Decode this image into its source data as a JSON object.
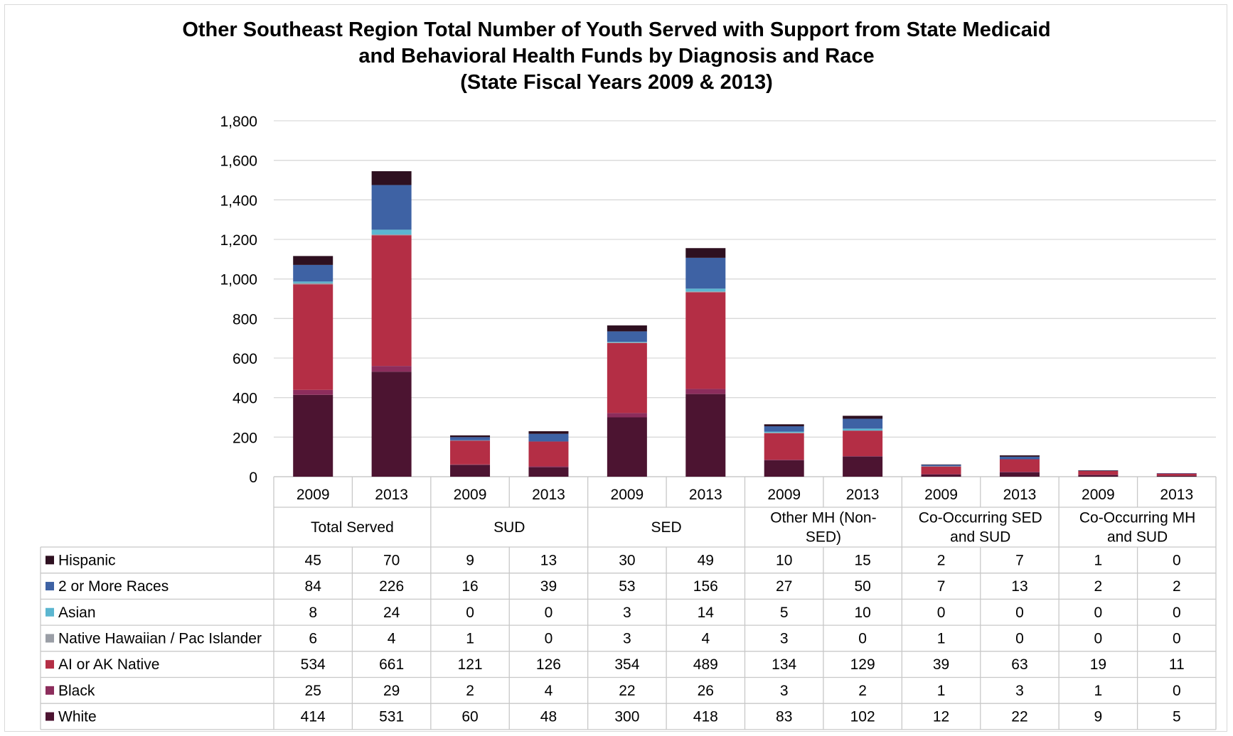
{
  "chart_data": {
    "type": "bar",
    "stacked": true,
    "title_lines": [
      "Other Southeast Region Total Number of Youth Served with Support from State Medicaid",
      "and Behavioral Health Funds by Diagnosis and Race",
      "(State Fiscal Years 2009 & 2013)"
    ],
    "groups": [
      {
        "label_lines": [
          "Total Served"
        ]
      },
      {
        "label_lines": [
          "SUD"
        ]
      },
      {
        "label_lines": [
          "SED"
        ]
      },
      {
        "label_lines": [
          "Other MH (Non-",
          "SED)"
        ]
      },
      {
        "label_lines": [
          "Co-Occurring SED",
          "and SUD"
        ]
      },
      {
        "label_lines": [
          "Co-Occurring MH",
          "and SUD"
        ]
      }
    ],
    "categories": [
      "2009",
      "2013",
      "2009",
      "2013",
      "2009",
      "2013",
      "2009",
      "2013",
      "2009",
      "2013",
      "2009",
      "2013"
    ],
    "ylim": [
      0,
      1800
    ],
    "yticks": [
      "0",
      "200",
      "400",
      "600",
      "800",
      "1,000",
      "1,200",
      "1,400",
      "1,600",
      "1,800"
    ],
    "ytick_values": [
      0,
      200,
      400,
      600,
      800,
      1000,
      1200,
      1400,
      1600,
      1800
    ],
    "grid": true,
    "legend": "data-table",
    "series": [
      {
        "name": "Hispanic",
        "color": "#2e1020",
        "values": [
          45,
          70,
          9,
          13,
          30,
          49,
          10,
          15,
          2,
          7,
          1,
          0
        ],
        "labels": [
          "45",
          "70",
          "9",
          "13",
          "30",
          "49",
          "10",
          "15",
          "2",
          "7",
          "1",
          "0"
        ]
      },
      {
        "name": "2 or More Races",
        "color": "#3e62a4",
        "values": [
          84,
          226,
          16,
          39,
          53,
          156,
          27,
          50,
          7,
          13,
          2,
          2
        ],
        "labels": [
          "84",
          "226",
          "16",
          "39",
          "53",
          "156",
          "27",
          "50",
          "7",
          "13",
          "2",
          "2"
        ]
      },
      {
        "name": "Asian",
        "color": "#5bb6d0",
        "values": [
          8,
          24,
          0,
          0,
          3,
          14,
          5,
          10,
          0,
          0,
          0,
          0
        ],
        "labels": [
          "8",
          "24",
          "0",
          "0",
          "3",
          "14",
          "5",
          "10",
          "0",
          "0",
          "0",
          "0"
        ]
      },
      {
        "name": "Native Hawaiian / Pac Islander",
        "color": "#9a9ea6",
        "values": [
          6,
          4,
          1,
          0,
          3,
          4,
          3,
          0,
          1,
          0,
          0,
          0
        ],
        "labels": [
          "6",
          "4",
          "1",
          "0",
          "3",
          "4",
          "3",
          "0",
          "1",
          "0",
          "0",
          "0"
        ]
      },
      {
        "name": "AI or AK Native",
        "color": "#b42e45",
        "values": [
          534,
          661,
          121,
          126,
          354,
          489,
          134,
          129,
          39,
          63,
          19,
          11
        ],
        "labels": [
          "534",
          "661",
          "121",
          "126",
          "354",
          "489",
          "134",
          "129",
          "39",
          "63",
          "19",
          "11"
        ]
      },
      {
        "name": "Black",
        "color": "#8c2d5c",
        "values": [
          25,
          29,
          2,
          4,
          22,
          26,
          3,
          2,
          1,
          3,
          1,
          0
        ],
        "labels": [
          "25",
          "29",
          "2",
          "4",
          "22",
          "26",
          "3",
          "2",
          "1",
          "3",
          "1",
          "0"
        ]
      },
      {
        "name": "White",
        "color": "#4c1431",
        "values": [
          414,
          531,
          60,
          48,
          300,
          418,
          83,
          102,
          12,
          22,
          9,
          5
        ],
        "labels": [
          "414",
          "531",
          "60",
          "48",
          "300",
          "418",
          "83",
          "102",
          "12",
          "22",
          "9",
          "5"
        ]
      }
    ]
  }
}
